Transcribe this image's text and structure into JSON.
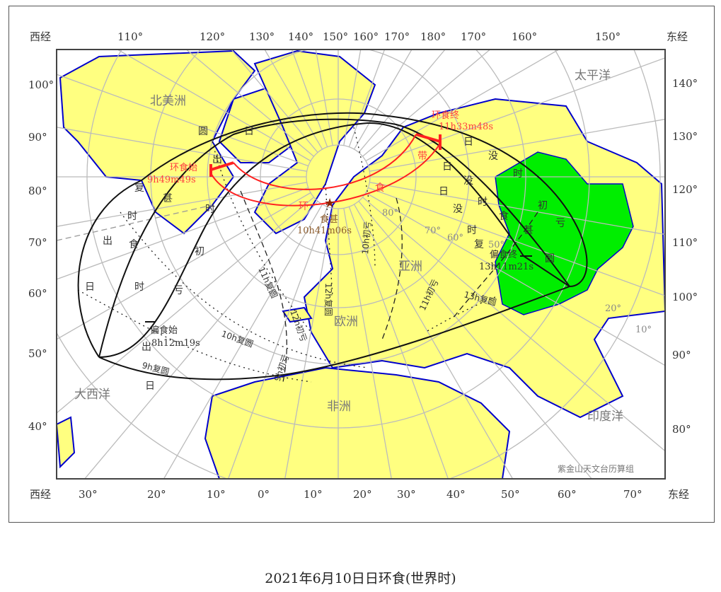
{
  "caption": "2021年6月10日日环食(世界时)",
  "credit": "紫金山天文台历算组",
  "colors": {
    "land": "#ffff80",
    "coast": "#0000cc",
    "umbra_region": "#00ee00",
    "annular_path": "#ff2020",
    "grid": "#bbbbbb",
    "curves": "#111111"
  },
  "axes": {
    "west_label": "西经",
    "east_label": "东经",
    "top": [
      "110°",
      "120°",
      "130°",
      "140°",
      "150°",
      "160°",
      "170°",
      "180°",
      "170°",
      "160°",
      "150°"
    ],
    "bottom": [
      "30°",
      "20°",
      "10°",
      "0°",
      "10°",
      "20°",
      "30°",
      "40°",
      "50°",
      "60°",
      "70°"
    ],
    "left": [
      "100°",
      "90°",
      "80°",
      "70°",
      "60°",
      "50°",
      "40°"
    ],
    "right": [
      "140°",
      "130°",
      "120°",
      "110°",
      "100°",
      "90°",
      "80°"
    ],
    "inner": [
      "80°",
      "70°",
      "60°",
      "50°",
      "20°",
      "10°"
    ]
  },
  "regions": {
    "north_america": "北美洲",
    "pacific": "太平洋",
    "atlantic": "大西洋",
    "asia": "亚洲",
    "europe": "欧洲",
    "africa": "非洲",
    "indian_ocean": "印度洋"
  },
  "events": {
    "annular_begin": {
      "label": "环食始",
      "time": "9h49m49s"
    },
    "annular_end": {
      "label": "环食终",
      "time": "11h33m48s"
    },
    "greatest": {
      "label": "食甚",
      "time": "10h41m06s"
    },
    "partial_begin": {
      "label": "偏食始",
      "time": "8h12m19s"
    },
    "partial_end": {
      "label": "偏食终",
      "time": "13h11m21s"
    }
  },
  "curve_labels": {
    "annular_band": [
      "环",
      "食",
      "带"
    ],
    "sunrise_first_contact": [
      "日",
      "出",
      "时",
      "初",
      "亏"
    ],
    "sunrise_greatest": [
      "日",
      "出",
      "时",
      "食",
      "甚"
    ],
    "sunrise_last_contact": [
      "日",
      "出",
      "时",
      "复",
      "圆"
    ],
    "sunset_first_contact": [
      "日",
      "没",
      "时",
      "初",
      "亏"
    ],
    "sunset_greatest": [
      "日",
      "没",
      "时",
      "食",
      "甚"
    ],
    "sunset_last_contact": [
      "日",
      "没",
      "时",
      "复",
      "圆"
    ],
    "hourly": [
      "9h复圆",
      "10h复圆",
      "11h复圆",
      "12h复圆",
      "11h初亏",
      "12h初亏",
      "10h初亏",
      "13h复圆",
      "9h初亏"
    ]
  }
}
